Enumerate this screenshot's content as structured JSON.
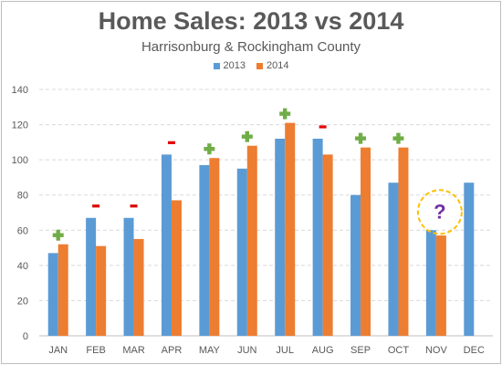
{
  "chart_data": {
    "type": "bar",
    "title": "Home Sales: 2013 vs 2014",
    "subtitle": "Harrisonburg & Rockingham County",
    "categories": [
      "JAN",
      "FEB",
      "MAR",
      "APR",
      "MAY",
      "JUN",
      "JUL",
      "AUG",
      "SEP",
      "OCT",
      "NOV",
      "DEC"
    ],
    "series": [
      {
        "name": "2013",
        "color": "#5b9bd5",
        "values": [
          47,
          67,
          67,
          103,
          97,
          95,
          112,
          112,
          80,
          87,
          60,
          87
        ]
      },
      {
        "name": "2014",
        "color": "#ed7d31",
        "values": [
          52,
          51,
          55,
          77,
          101,
          108,
          121,
          103,
          107,
          107,
          57,
          null
        ]
      }
    ],
    "ylim": [
      0,
      140
    ],
    "yticks": [
      0,
      20,
      40,
      60,
      80,
      100,
      120,
      140
    ],
    "grid": true,
    "legend_position": "top-center",
    "annotations": [
      {
        "category": "JAN",
        "symbol": "+",
        "color": "#70ad47"
      },
      {
        "category": "FEB",
        "symbol": "-",
        "color": "#e00000"
      },
      {
        "category": "MAR",
        "symbol": "-",
        "color": "#e00000"
      },
      {
        "category": "APR",
        "symbol": "-",
        "color": "#e00000"
      },
      {
        "category": "MAY",
        "symbol": "+",
        "color": "#70ad47"
      },
      {
        "category": "JUN",
        "symbol": "+",
        "color": "#70ad47"
      },
      {
        "category": "JUL",
        "symbol": "+",
        "color": "#70ad47"
      },
      {
        "category": "AUG",
        "symbol": "-",
        "color": "#e00000"
      },
      {
        "category": "SEP",
        "symbol": "+",
        "color": "#70ad47"
      },
      {
        "category": "OCT",
        "symbol": "+",
        "color": "#70ad47"
      },
      {
        "category": "NOV",
        "symbol": "?",
        "color": "#7030a0",
        "circle_color": "#ffc000"
      }
    ]
  }
}
